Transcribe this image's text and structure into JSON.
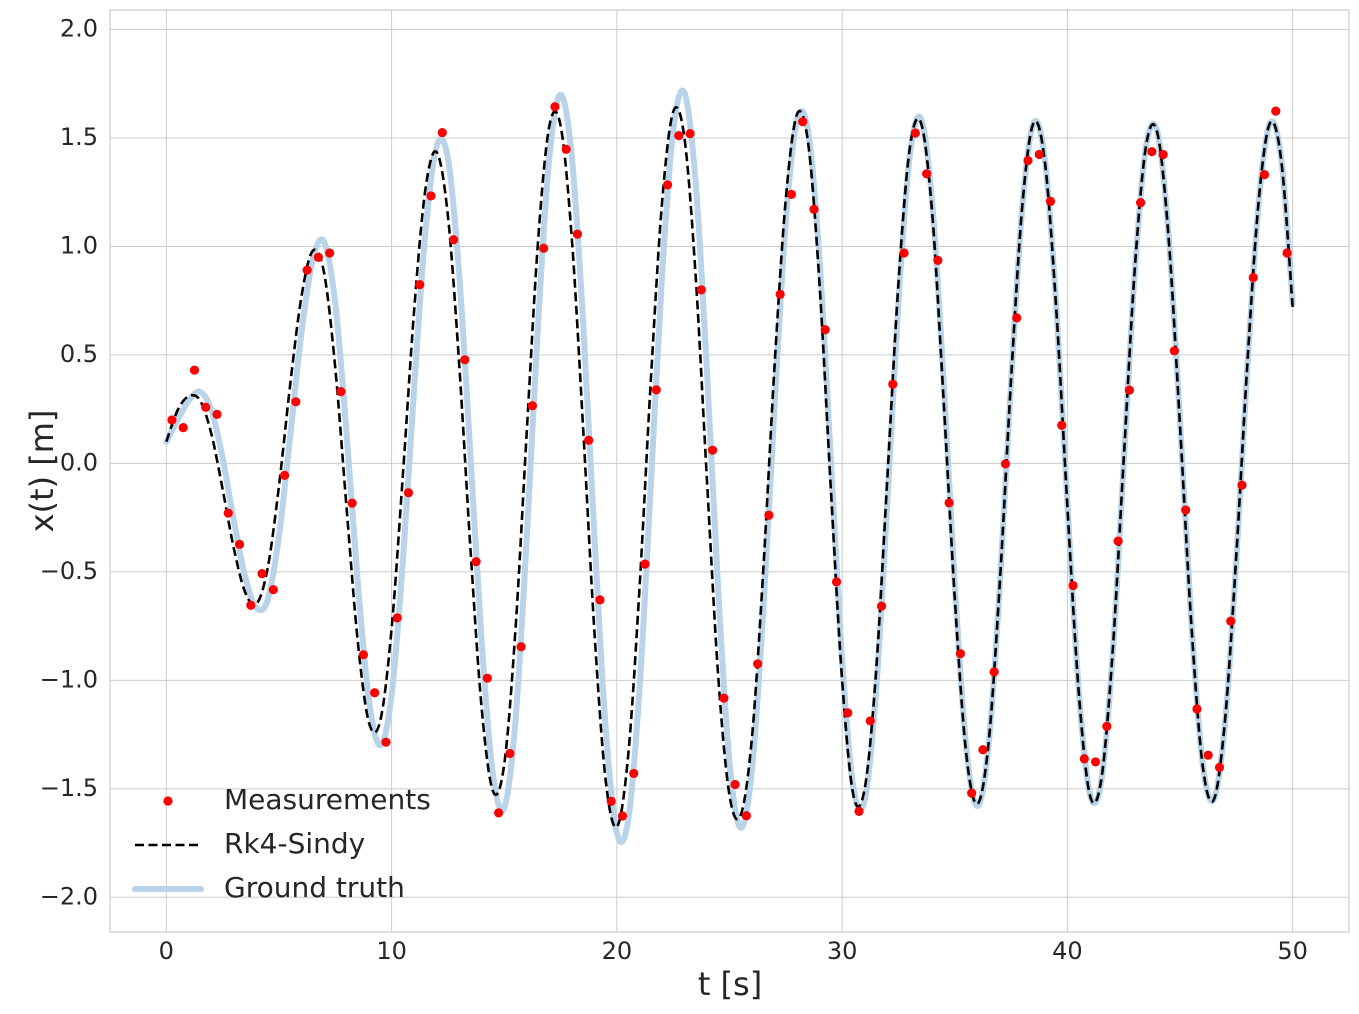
{
  "chart_data": {
    "type": "line",
    "xlabel": "t [s]",
    "ylabel": "x(t) [m]",
    "x": [
      0,
      0.5,
      1,
      1.5,
      2,
      2.5,
      3,
      3.5,
      4,
      4.5,
      5,
      5.5,
      6,
      6.5,
      7,
      7.5,
      8,
      8.5,
      9,
      9.5,
      10,
      10.5,
      11,
      11.5,
      12,
      12.5,
      13,
      13.5,
      14,
      14.5,
      15,
      15.5,
      16,
      16.5,
      17,
      17.5,
      18,
      18.5,
      19,
      19.5,
      20,
      20.5,
      21,
      21.5,
      22,
      22.5,
      23,
      23.5,
      24,
      24.5,
      25,
      25.5,
      26,
      26.5,
      27,
      27.5,
      28,
      28.5,
      29,
      29.5,
      30,
      30.5,
      31,
      31.5,
      32,
      32.5,
      33,
      33.5,
      34,
      34.5,
      35,
      35.5,
      36,
      36.5,
      37,
      37.5,
      38,
      38.5,
      39,
      39.5,
      40,
      40.5,
      41,
      41.5,
      42,
      42.5,
      43,
      43.5,
      44,
      44.5,
      45,
      45.5,
      46,
      46.5,
      47,
      47.5,
      48,
      48.5,
      49,
      49.5,
      50
    ],
    "series": [
      {
        "name": "Measurements",
        "color": "#ff0000",
        "style": "points",
        "x": [
          0.25,
          0.75,
          1.25,
          1.75,
          2.25,
          2.75,
          3.25,
          3.75,
          4.25,
          4.75,
          5.25,
          5.75,
          6.25,
          6.75,
          7.25,
          7.75,
          8.25,
          8.75,
          9.25,
          9.75,
          10.25,
          10.75,
          11.25,
          11.75,
          12.25,
          12.75,
          13.25,
          13.75,
          14.25,
          14.75,
          15.25,
          15.75,
          16.25,
          16.75,
          17.25,
          17.75,
          18.25,
          18.75,
          19.25,
          19.75,
          20.25,
          20.75,
          21.25,
          21.75,
          22.25,
          22.75,
          23.25,
          23.75,
          24.25,
          24.75,
          25.25,
          25.75,
          26.25,
          26.75,
          27.25,
          27.75,
          28.25,
          28.75,
          29.25,
          29.75,
          30.25,
          30.75,
          31.25,
          31.75,
          32.25,
          32.75,
          33.25,
          33.75,
          34.25,
          34.75,
          35.25,
          35.75,
          36.25,
          36.75,
          37.25,
          37.75,
          38.25,
          38.75,
          39.25,
          39.75,
          40.25,
          40.75,
          41.25,
          41.75,
          42.25,
          42.75,
          43.25,
          43.75,
          44.25,
          44.75,
          45.25,
          45.75,
          46.25,
          46.75,
          47.25,
          47.75,
          48.25,
          48.75,
          49.25,
          49.75
        ],
        "values": [
          0.2,
          0.165,
          0.43,
          0.259,
          0.226,
          -0.229,
          -0.373,
          -0.654,
          -0.508,
          -0.582,
          -0.055,
          0.284,
          0.891,
          0.95,
          0.97,
          0.331,
          -0.183,
          -0.882,
          -1.057,
          -1.285,
          -0.712,
          -0.135,
          0.824,
          1.233,
          1.525,
          1.031,
          0.478,
          -0.453,
          -0.99,
          -1.611,
          -1.337,
          -0.845,
          0.266,
          0.992,
          1.644,
          1.448,
          1.057,
          0.107,
          -0.629,
          -1.558,
          -1.625,
          -1.429,
          -0.464,
          0.339,
          1.284,
          1.511,
          1.52,
          0.8,
          0.061,
          -1.082,
          -1.48,
          -1.624,
          -0.924,
          -0.239,
          0.779,
          1.24,
          1.575,
          1.171,
          0.616,
          -0.546,
          -1.15,
          -1.604,
          -1.187,
          -0.658,
          0.365,
          0.97,
          1.523,
          1.335,
          0.936,
          -0.182,
          -0.877,
          -1.52,
          -1.32,
          -0.961,
          -0.002,
          0.671,
          1.396,
          1.424,
          1.208,
          0.176,
          -0.563,
          -1.362,
          -1.376,
          -1.212,
          -0.358,
          0.338,
          1.202,
          1.437,
          1.424,
          0.519,
          -0.215,
          -1.132,
          -1.345,
          -1.401,
          -0.727,
          -0.1,
          0.857,
          1.331,
          1.624,
          0.97
        ]
      },
      {
        "name": "Rk4-Sindy",
        "color": "#000000",
        "style": "dashed",
        "values": [
          0.1,
          0.245,
          0.31,
          0.29,
          0.136,
          -0.119,
          -0.393,
          -0.594,
          -0.648,
          -0.482,
          -0.105,
          0.364,
          0.77,
          0.98,
          0.88,
          0.44,
          -0.203,
          -0.822,
          -1.197,
          -1.185,
          -0.762,
          -0.055,
          0.704,
          1.263,
          1.435,
          1.141,
          0.458,
          -0.393,
          -1.13,
          -1.511,
          -1.387,
          -0.765,
          0.146,
          1.022,
          1.554,
          1.558,
          1.037,
          0.167,
          -0.769,
          -1.458,
          -1.675,
          -1.349,
          -0.584,
          0.369,
          1.194,
          1.621,
          1.5,
          0.86,
          -0.079,
          -0.982,
          -1.53,
          -1.62,
          -1.26,
          -0.49,
          0.45,
          1.22,
          1.61,
          1.47,
          0.82,
          -0.12,
          -1.0,
          -1.53,
          -1.5,
          -0.97,
          -0.08,
          0.83,
          1.45,
          1.57,
          1.15,
          0.3,
          -0.62,
          -1.33,
          -1.57,
          -1.29,
          -0.55,
          0.39,
          1.19,
          1.57,
          1.39,
          0.72,
          -0.2,
          -1.05,
          -1.53,
          -1.46,
          -0.88,
          0.02,
          0.91,
          1.47,
          1.52,
          1.03,
          0.17,
          -0.74,
          -1.39,
          -1.55,
          -1.18,
          -0.42,
          0.48,
          1.22,
          1.57,
          1.39,
          0.72
        ]
      },
      {
        "name": "Ground truth",
        "color": "#b9d4e9",
        "style": "thick",
        "values": [
          0.1,
          0.2,
          0.29,
          0.33,
          0.247,
          0.025,
          -0.263,
          -0.522,
          -0.666,
          -0.629,
          -0.335,
          0.125,
          0.603,
          0.938,
          1.022,
          0.738,
          0.143,
          -0.549,
          -1.094,
          -1.3,
          -1.069,
          -0.454,
          0.344,
          1.063,
          1.462,
          1.407,
          0.875,
          0.04,
          -0.825,
          -1.434,
          -1.588,
          -1.186,
          -0.344,
          0.636,
          1.408,
          1.7,
          1.415,
          0.658,
          -0.325,
          -1.212,
          -1.703,
          -1.646,
          -1.051,
          -0.116,
          0.853,
          1.534,
          1.708,
          1.293,
          0.426,
          -0.584,
          -1.379,
          -1.68,
          -1.407,
          -0.68,
          0.263,
          1.114,
          1.585,
          1.525,
          0.936,
          0.015,
          -0.906,
          -1.495,
          -1.553,
          -1.061,
          -0.194,
          0.744,
          1.416,
          1.589,
          1.201,
          0.39,
          -0.554,
          -1.299,
          -1.58,
          -1.3,
          -0.561,
          0.378,
          1.183,
          1.569,
          1.399,
          0.737,
          -0.186,
          -1.039,
          -1.524,
          -1.468,
          -0.895,
          0,
          0.895,
          1.468,
          1.525,
          1.043,
          0.194,
          -0.723,
          -1.38,
          -1.549,
          -1.193,
          -0.441,
          0.461,
          1.213,
          1.569,
          1.399,
          0.74
        ]
      }
    ],
    "xlim": [
      -2.5,
      52.5
    ],
    "ylim": [
      -2.16,
      2.09
    ],
    "xticks": [
      0,
      10,
      20,
      30,
      40,
      50
    ],
    "yticks": [
      {
        "value": -2.0,
        "label": "−2.0"
      },
      {
        "value": -1.5,
        "label": "−1.5"
      },
      {
        "value": -1.0,
        "label": "−1.0"
      },
      {
        "value": -0.5,
        "label": "−0.5"
      },
      {
        "value": 0.0,
        "label": "0.0"
      },
      {
        "value": 0.5,
        "label": "0.5"
      },
      {
        "value": 1.0,
        "label": "1.0"
      },
      {
        "value": 1.5,
        "label": "1.5"
      },
      {
        "value": 2.0,
        "label": "2.0"
      }
    ],
    "grid": true,
    "legend": "lower left"
  }
}
